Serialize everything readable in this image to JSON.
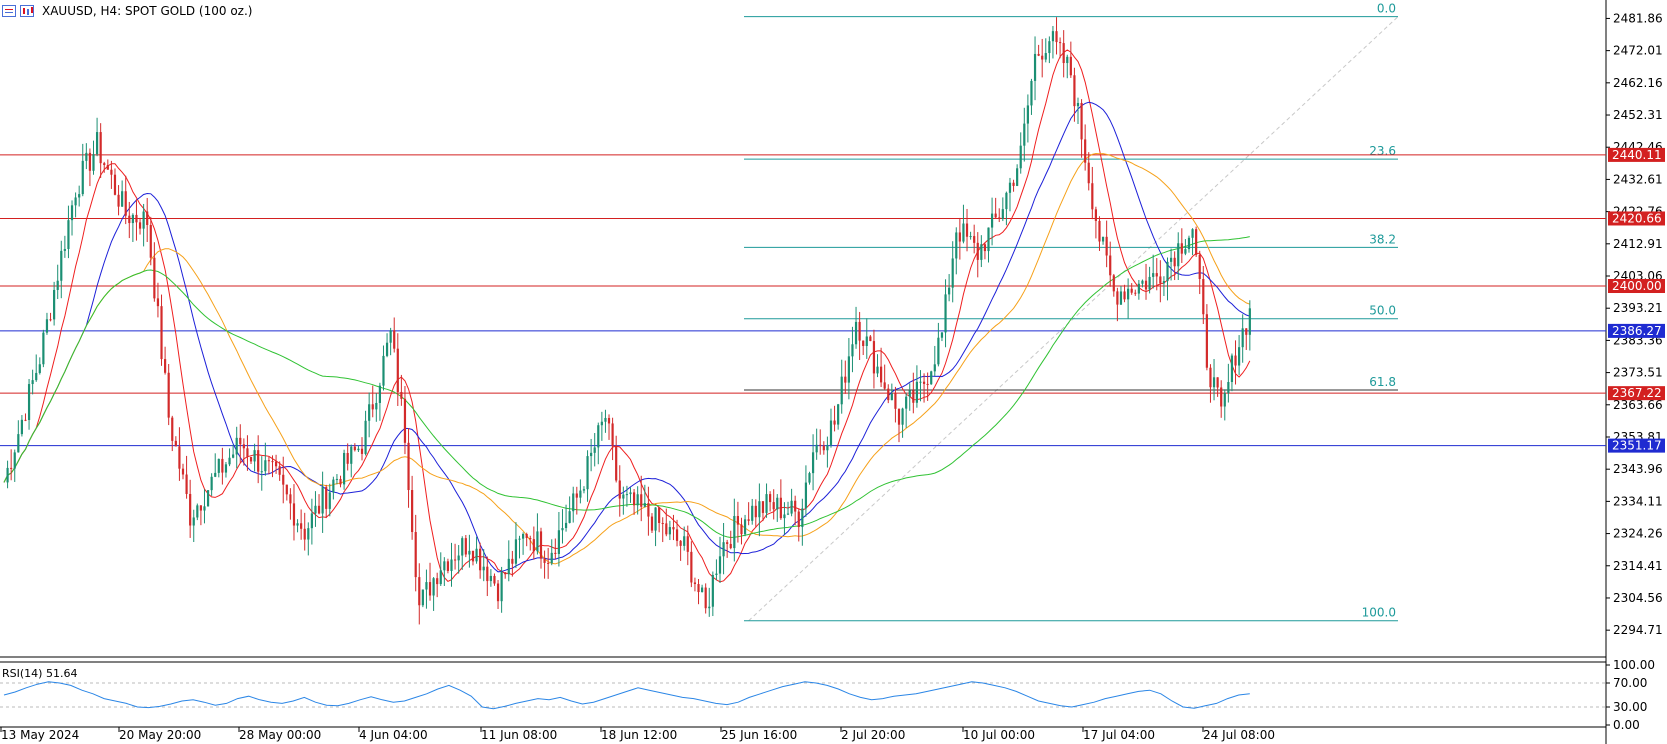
{
  "header": {
    "symbol_label": "XAUUSD, H4:  SPOT GOLD (100 oz.)",
    "icons": [
      "chart-list-icon",
      "bar-chart-icon"
    ]
  },
  "colors": {
    "bull": "#1b8f73",
    "bear": "#d32a2a",
    "sma_red": "#ef1f1f",
    "sma_blue": "#1d20d8",
    "sma_orange": "#f6a11a",
    "sma_green": "#30c233",
    "fib": "#1e9a9a",
    "support_line": "#1f2bd1",
    "resist_line": "#d32020",
    "rsi": "#2b86e6"
  },
  "chart_data": [
    {
      "type": "candlestick",
      "symbol": "XAUUSD",
      "timeframe": "H4",
      "ylim": [
        2286.5,
        2487.5
      ],
      "y_ticks": [
        2481.86,
        2472.01,
        2462.16,
        2452.31,
        2442.46,
        2432.61,
        2422.76,
        2412.91,
        2403.06,
        2393.21,
        2383.36,
        2373.51,
        2363.66,
        2353.81,
        2343.96,
        2334.11,
        2324.26,
        2314.41,
        2304.56,
        2294.71
      ],
      "x_ticks": [
        "13 May 2024",
        "20 May 20:00",
        "28 May 00:00",
        "4 Jun 04:00",
        "11 Jun 08:00",
        "18 Jun 12:00",
        "25 Jun 16:00",
        "2 Jul 20:00",
        "10 Jul 00:00",
        "17 Jul 04:00",
        "24 Jul 08:00"
      ],
      "keypoints": [
        [
          0,
          2340
        ],
        [
          10,
          2378
        ],
        [
          20,
          2430
        ],
        [
          26,
          2443
        ],
        [
          34,
          2422
        ],
        [
          40,
          2420
        ],
        [
          46,
          2360
        ],
        [
          52,
          2330
        ],
        [
          58,
          2340
        ],
        [
          66,
          2352
        ],
        [
          76,
          2341
        ],
        [
          84,
          2325
        ],
        [
          92,
          2340
        ],
        [
          100,
          2352
        ],
        [
          108,
          2385
        ],
        [
          112,
          2355
        ],
        [
          116,
          2302
        ],
        [
          122,
          2315
        ],
        [
          130,
          2322
        ],
        [
          138,
          2308
        ],
        [
          146,
          2325
        ],
        [
          152,
          2318
        ],
        [
          160,
          2335
        ],
        [
          168,
          2360
        ],
        [
          172,
          2335
        ],
        [
          180,
          2330
        ],
        [
          190,
          2320
        ],
        [
          196,
          2300
        ],
        [
          200,
          2320
        ],
        [
          208,
          2331
        ],
        [
          214,
          2333
        ],
        [
          222,
          2330
        ],
        [
          226,
          2350
        ],
        [
          232,
          2358
        ],
        [
          238,
          2390
        ],
        [
          244,
          2375
        ],
        [
          250,
          2360
        ],
        [
          256,
          2368
        ],
        [
          262,
          2385
        ],
        [
          266,
          2418
        ],
        [
          272,
          2410
        ],
        [
          278,
          2422
        ],
        [
          284,
          2440
        ],
        [
          288,
          2470
        ],
        [
          292,
          2476
        ],
        [
          298,
          2465
        ],
        [
          302,
          2440
        ],
        [
          306,
          2415
        ],
        [
          310,
          2398
        ],
        [
          316,
          2400
        ],
        [
          322,
          2403
        ],
        [
          328,
          2412
        ],
        [
          332,
          2418
        ],
        [
          336,
          2378
        ],
        [
          340,
          2360
        ],
        [
          344,
          2380
        ],
        [
          348,
          2392
        ]
      ],
      "support_resistance": [
        {
          "price": 2440.11,
          "label": "2440.11",
          "kind": "resistance"
        },
        {
          "price": 2420.66,
          "label": "2420.66",
          "kind": "resistance"
        },
        {
          "price": 2400.0,
          "label": "2400.00",
          "kind": "resistance"
        },
        {
          "price": 2386.27,
          "label": "2386.27",
          "kind": "support"
        },
        {
          "price": 2367.22,
          "label": "2367.22",
          "kind": "resistance"
        },
        {
          "price": 2351.17,
          "label": "2351.17",
          "kind": "support"
        }
      ],
      "fibonacci": {
        "high": 2482.4,
        "low": 2297.6,
        "levels": [
          {
            "label": "0.0",
            "price": 2482.4
          },
          {
            "label": "23.6",
            "price": 2438.8
          },
          {
            "label": "38.2",
            "price": 2411.8
          },
          {
            "label": "50.0",
            "price": 2390.0
          },
          {
            "label": "61.8",
            "price": 2368.2
          },
          {
            "label": "100.0",
            "price": 2297.6
          }
        ]
      }
    },
    {
      "type": "line",
      "title": "RSI(14) 51.64",
      "ylim": [
        0,
        100
      ],
      "y_ticks": [
        "100.00",
        "70.00",
        "30.00",
        "0.00"
      ],
      "guides": [
        70,
        30
      ],
      "series": [
        {
          "values": [
            50,
            55,
            62,
            68,
            72,
            70,
            66,
            58,
            52,
            44,
            40,
            36,
            30,
            29,
            31,
            35,
            40,
            42,
            38,
            33,
            36,
            44,
            48,
            42,
            38,
            36,
            40,
            46,
            38,
            33,
            32,
            36,
            42,
            47,
            42,
            38,
            40,
            46,
            52,
            60,
            66,
            58,
            48,
            30,
            27,
            31,
            36,
            40,
            44,
            42,
            46,
            40,
            35,
            38,
            44,
            50,
            56,
            62,
            58,
            54,
            50,
            46,
            44,
            40,
            36,
            34,
            38,
            46,
            52,
            58,
            64,
            68,
            72,
            70,
            66,
            60,
            52,
            46,
            42,
            44,
            48,
            50,
            52,
            56,
            60,
            64,
            68,
            72,
            70,
            66,
            62,
            56,
            48,
            40,
            36,
            32,
            30,
            34,
            38,
            44,
            48,
            52,
            56,
            58,
            52,
            40,
            30,
            28,
            32,
            36,
            44,
            50,
            52
          ]
        }
      ]
    }
  ]
}
